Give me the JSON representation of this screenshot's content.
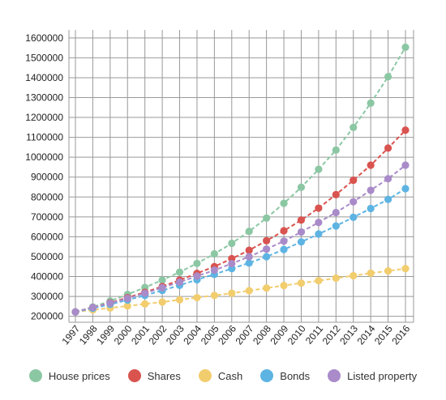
{
  "chart_data": {
    "type": "line",
    "title": "",
    "xlabel": "",
    "ylabel": "",
    "categories": [
      "1997",
      "1998",
      "1999",
      "2000",
      "2001",
      "2002",
      "2003",
      "2004",
      "2005",
      "2006",
      "2007",
      "2008",
      "2009",
      "2010",
      "2011",
      "2012",
      "2013",
      "2014",
      "2015",
      "2016"
    ],
    "y_ticks": [
      "1600000",
      "1500000",
      "1400000",
      "1300000",
      "1200000",
      "1100000",
      "1000000",
      "900000",
      "800000",
      "700000",
      "600000",
      "500000",
      "400000",
      "300000",
      "200000"
    ],
    "ylim": [
      170000,
      1640000
    ],
    "grid": true,
    "legend_position": "bottom",
    "series": [
      {
        "name": "House prices",
        "color": "#8cc7a4",
        "values": [
          222000,
          247000,
          277000,
          310000,
          345000,
          382000,
          422000,
          466000,
          514000,
          567000,
          627000,
          694000,
          768000,
          849000,
          939000,
          1036000,
          1150000,
          1272000,
          1405000,
          1553000
        ]
      },
      {
        "name": "Shares",
        "color": "#d9534f",
        "values": [
          222000,
          244000,
          268000,
          294000,
          321000,
          350000,
          382000,
          416000,
          450000,
          490000,
          532000,
          580000,
          630000,
          684000,
          744000,
          812000,
          884000,
          960000,
          1046000,
          1136000
        ]
      },
      {
        "name": "Cash",
        "color": "#f2cd6e",
        "values": [
          222000,
          232000,
          242000,
          252000,
          262000,
          272000,
          283000,
          294000,
          305000,
          316000,
          329000,
          342000,
          355000,
          367000,
          379000,
          392000,
          404000,
          417000,
          428000,
          440000
        ]
      },
      {
        "name": "Bonds",
        "color": "#5db4e3",
        "values": [
          222000,
          240000,
          260000,
          282000,
          305000,
          330000,
          356000,
          384000,
          411000,
          440000,
          468000,
          500000,
          536000,
          574000,
          614000,
          654000,
          698000,
          742000,
          788000,
          842000
        ]
      },
      {
        "name": "Listed property",
        "color": "#a98bc9",
        "values": [
          222000,
          245000,
          266000,
          290000,
          316000,
          344000,
          372000,
          402000,
          432000,
          465000,
          500000,
          538000,
          578000,
          624000,
          672000,
          722000,
          776000,
          834000,
          892000,
          960000
        ]
      }
    ]
  }
}
